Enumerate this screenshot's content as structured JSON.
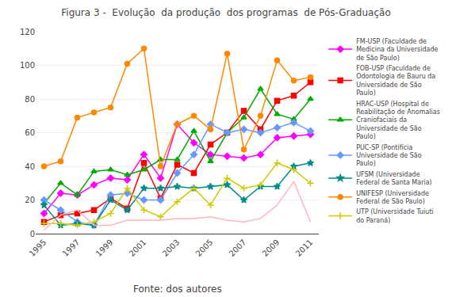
{
  "chart_data": {
    "type": "line",
    "title": "Figura 3 -  Evolução  da produção  dos programas  de Pós-Graduação",
    "annotations": [
      "Fonte: dos autores"
    ],
    "x": [
      1995,
      1996,
      1997,
      1998,
      1999,
      2000,
      2001,
      2002,
      2003,
      2004,
      2005,
      2006,
      2007,
      2008,
      2009,
      2010,
      2011
    ],
    "xlim": [
      1994.5,
      2011.5
    ],
    "xticks": [
      1995,
      1997,
      1999,
      2001,
      2003,
      2005,
      2007,
      2009,
      2011
    ],
    "ylim": [
      0,
      120
    ],
    "yticks": [
      0,
      20,
      40,
      60,
      80,
      100,
      120
    ],
    "grid": "y",
    "legend": "right",
    "series": [
      {
        "name": "FM-USP (Faculdade de\nMedicina da Universidade\nde São Paulo)",
        "color": "#FF00FF",
        "marker": "diamond",
        "values": [
          12,
          24,
          23,
          29,
          33,
          32,
          47,
          33,
          65,
          54,
          47,
          46,
          45,
          47,
          57,
          58,
          59
        ]
      },
      {
        "name": "FOB-USP (Faculdade de\nOdontologia de Bauru da\nUniversidade de São\nPaulo)",
        "color": "#FF0000",
        "marker": "square",
        "values": [
          7,
          11,
          12,
          14,
          21,
          15,
          42,
          21,
          41,
          36,
          53,
          60,
          73,
          62,
          79,
          82,
          90
        ]
      },
      {
        "name": "HRAC-USP (Hospital de\nReabilitação de Anomalias\nCraniofaciais da\nUniversidade de São\nPaulo)",
        "color": "#00AA00",
        "marker": "triangle-up",
        "values": [
          18,
          30,
          23,
          37,
          38,
          35,
          38,
          44,
          44,
          61,
          43,
          60,
          69,
          86,
          71,
          68,
          80
        ]
      },
      {
        "name": "PUC-SP (Pontifícia\nUniversidade de São\nPaulo)",
        "color": "#6699FF",
        "marker": "diamond",
        "values": [
          20,
          14,
          7,
          5,
          23,
          24,
          20,
          20,
          36,
          47,
          65,
          60,
          62,
          60,
          63,
          66,
          61
        ]
      },
      {
        "name": "UFSM (Universidade\nFederal de Santa Maria)",
        "color": "#008B8B",
        "marker": "star",
        "values": [
          17,
          5,
          6,
          5,
          20,
          14,
          27,
          27,
          28,
          27,
          28,
          29,
          20,
          28,
          28,
          40,
          42
        ]
      },
      {
        "name": "UNIFESP (Universidade\nFederal de São Paulo)",
        "color": "#FF8800",
        "marker": "circle",
        "values": [
          40,
          43,
          69,
          72,
          75,
          101,
          110,
          40,
          65,
          70,
          62,
          107,
          50,
          70,
          103,
          91,
          93
        ]
      },
      {
        "name": "UTP (Universidade Tuiuti\ndo Paraná)",
        "color": "#CCCC00",
        "marker": "cross-thin",
        "values": [
          6,
          6,
          5,
          7,
          12,
          27,
          14,
          10,
          19,
          27,
          17,
          33,
          27,
          29,
          42,
          38,
          30
        ]
      },
      {
        "name": null,
        "color": "#FFB6C1",
        "marker": null,
        "values": [
          2,
          11,
          14,
          5,
          5,
          8,
          8,
          8,
          9,
          9,
          10,
          8,
          7,
          9,
          17,
          31,
          7
        ]
      }
    ]
  }
}
